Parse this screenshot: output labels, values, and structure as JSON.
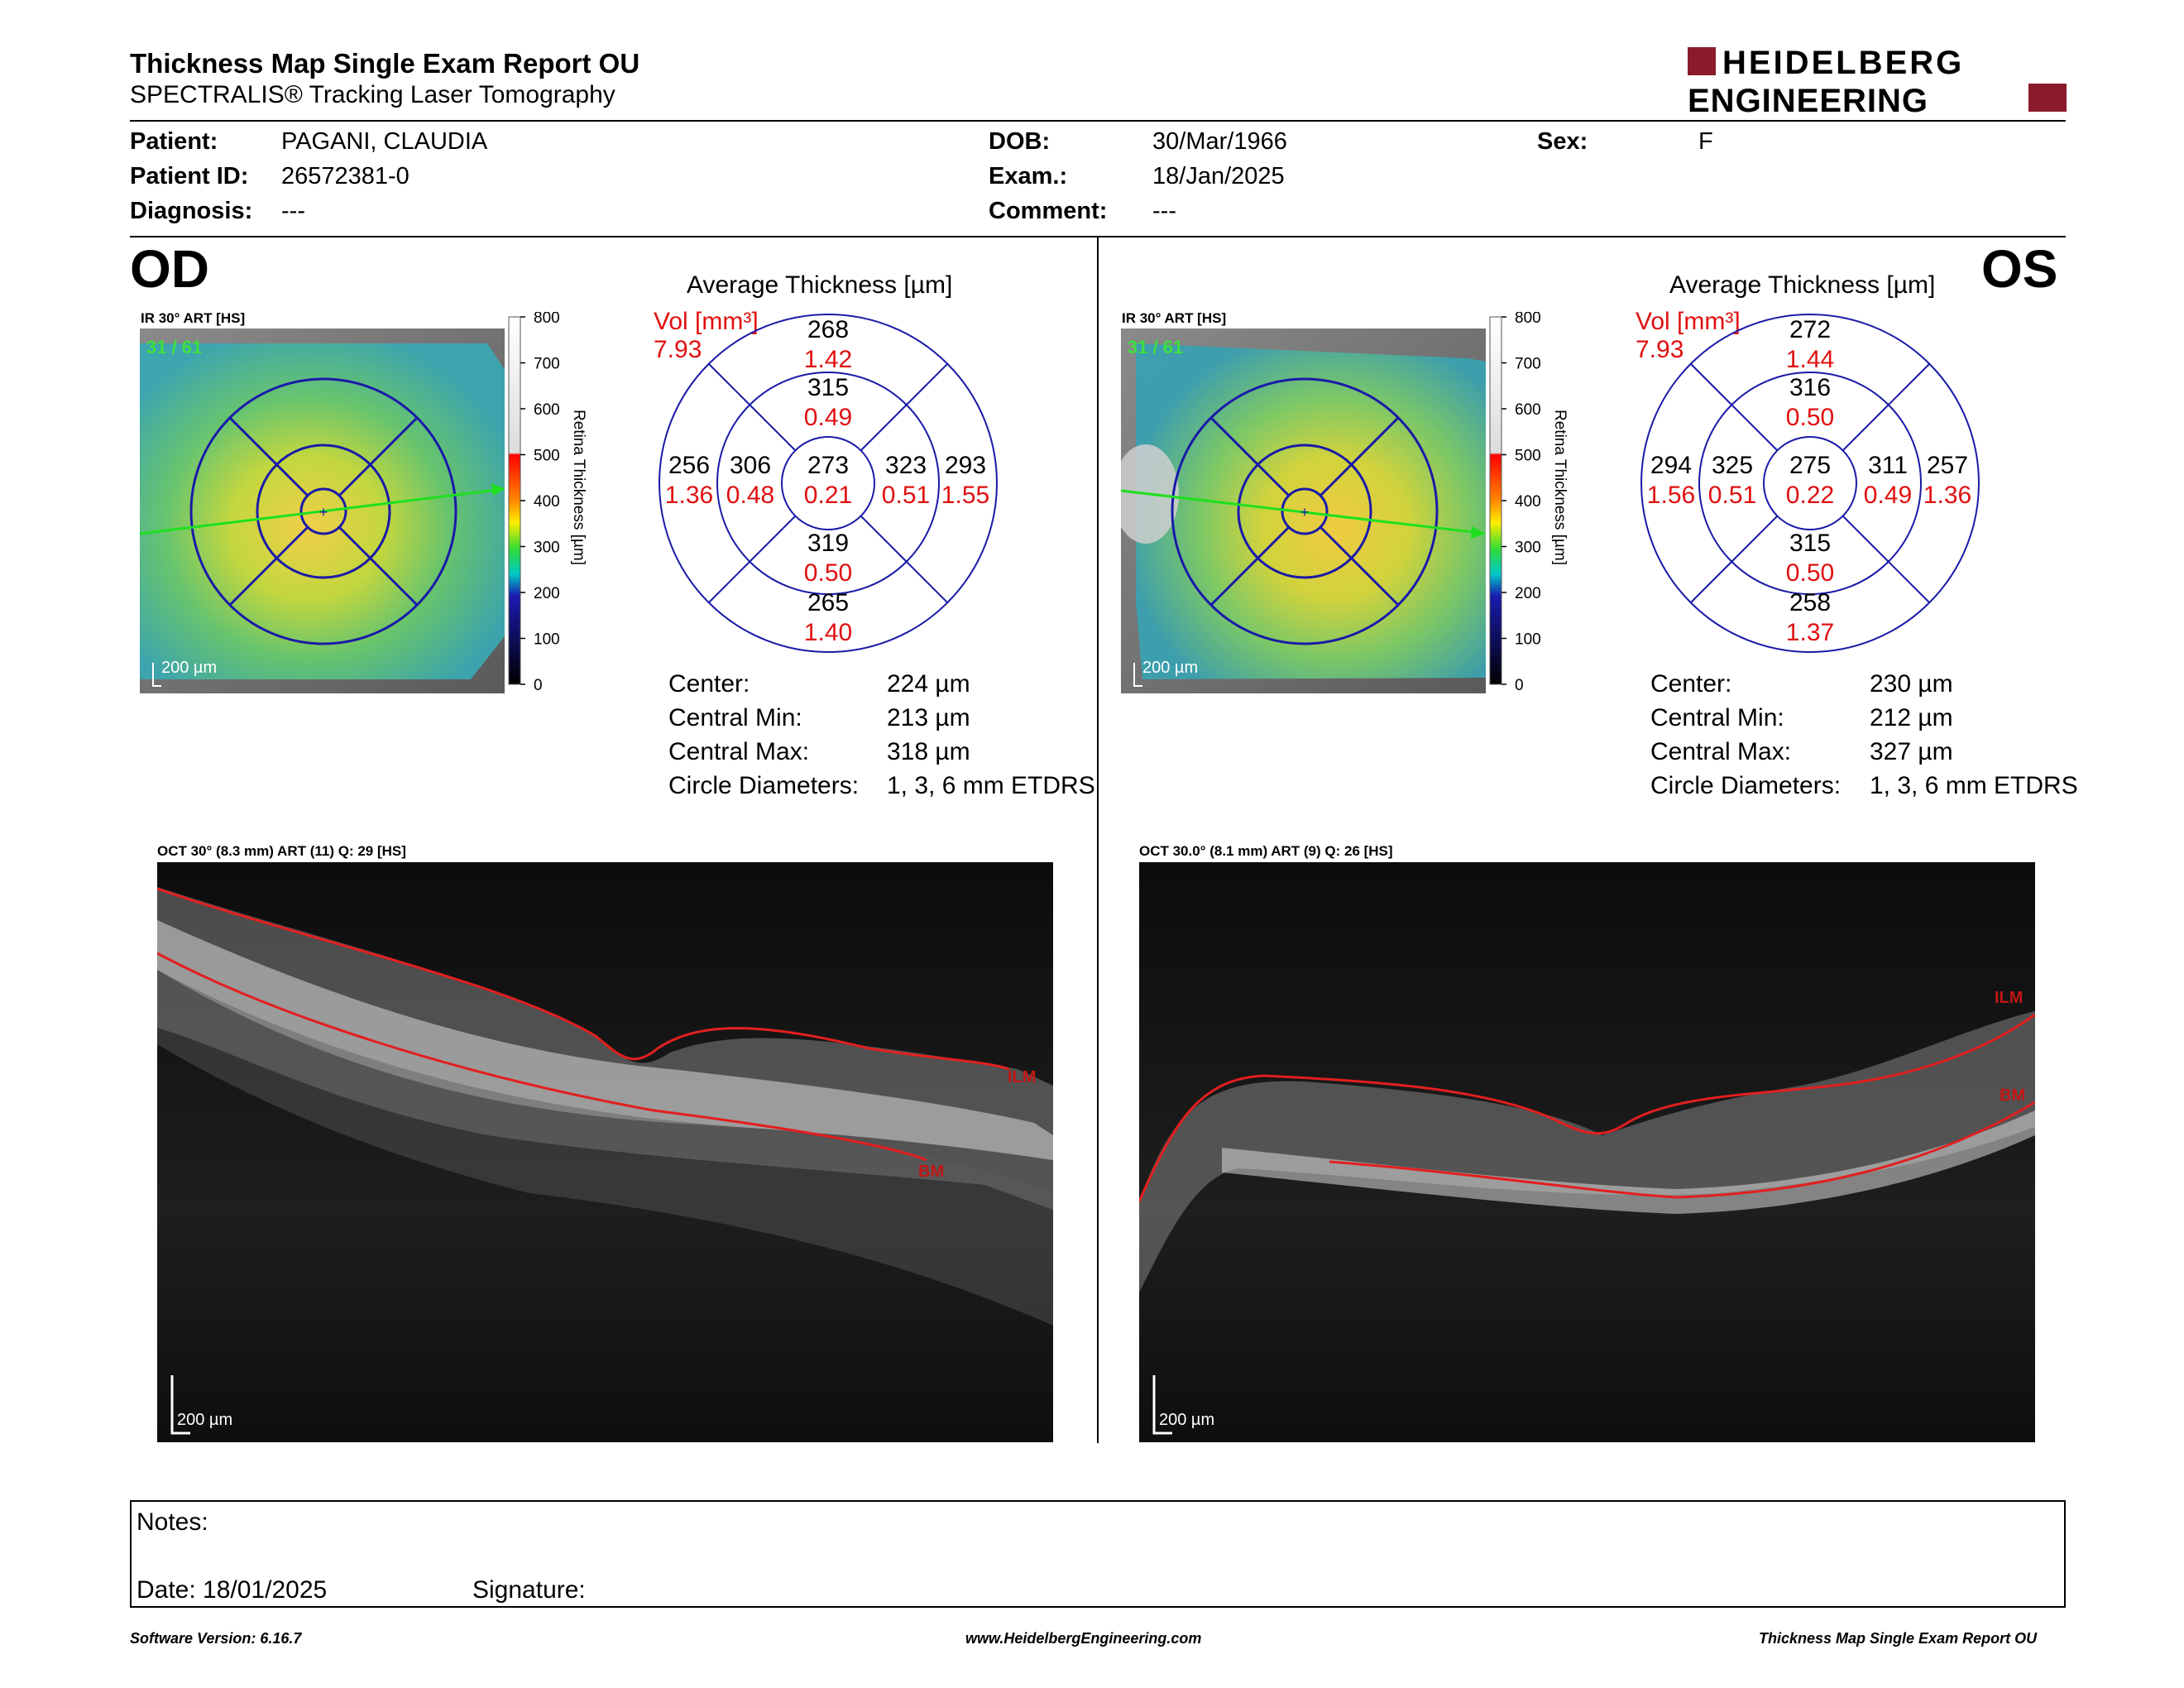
{
  "header": {
    "title": "Thickness Map Single Exam Report OU",
    "subtitle": "SPECTRALIS® Tracking Laser Tomography",
    "brand_line1": "HEIDELBERG",
    "brand_line2": "ENGINEERING",
    "brand_color": "#8b1a2e"
  },
  "patient": {
    "patient_label": "Patient:",
    "patient_value": "PAGANI, CLAUDIA",
    "id_label": "Patient ID:",
    "id_value": "26572381-0",
    "diag_label": "Diagnosis:",
    "diag_value": "---",
    "dob_label": "DOB:",
    "dob_value": "30/Mar/1966",
    "exam_label": "Exam.:",
    "exam_value": "18/Jan/2025",
    "comment_label": "Comment:",
    "comment_value": "---",
    "sex_label": "Sex:",
    "sex_value": "F"
  },
  "colorbar": {
    "ticks": [
      "800",
      "700",
      "600",
      "500",
      "400",
      "300",
      "200",
      "100",
      "0"
    ],
    "title": "Retina  Thickness [µm]"
  },
  "od": {
    "eye": "OD",
    "ir_label": "IR 30° ART [HS]",
    "frame_count": "31 / 61",
    "scale": "200 µm",
    "avg_title": "Average Thickness [µm]",
    "vol_label": "Vol [mm³]",
    "vol_value": "7.93",
    "sectors": {
      "center": {
        "t": "273",
        "v": "0.21"
      },
      "inner_sup": {
        "t": "315",
        "v": "0.49"
      },
      "inner_inf": {
        "t": "319",
        "v": "0.50"
      },
      "inner_left": {
        "t": "306",
        "v": "0.48"
      },
      "inner_right": {
        "t": "323",
        "v": "0.51"
      },
      "outer_sup": {
        "t": "268",
        "v": "1.42"
      },
      "outer_inf": {
        "t": "265",
        "v": "1.40"
      },
      "outer_left": {
        "t": "256",
        "v": "1.36"
      },
      "outer_right": {
        "t": "293",
        "v": "1.55"
      }
    },
    "stats": {
      "center_label": "Center:",
      "center_value": "224 µm",
      "min_label": "Central Min:",
      "min_value": "213 µm",
      "max_label": "Central Max:",
      "max_value": "318 µm",
      "diam_label": "Circle Diameters:",
      "diam_value": "1, 3, 6 mm ETDRS"
    },
    "oct_label": "OCT 30° (8.3 mm) ART (11) Q: 29 [HS]",
    "oct_scale": "200 µm",
    "ilm": "ILM",
    "bm": "BM"
  },
  "os": {
    "eye": "OS",
    "ir_label": "IR 30° ART [HS]",
    "frame_count": "31 / 61",
    "scale": "200 µm",
    "avg_title": "Average Thickness [µm]",
    "vol_label": "Vol [mm³]",
    "vol_value": "7.93",
    "sectors": {
      "center": {
        "t": "275",
        "v": "0.22"
      },
      "inner_sup": {
        "t": "316",
        "v": "0.50"
      },
      "inner_inf": {
        "t": "315",
        "v": "0.50"
      },
      "inner_left": {
        "t": "325",
        "v": "0.51"
      },
      "inner_right": {
        "t": "311",
        "v": "0.49"
      },
      "outer_sup": {
        "t": "272",
        "v": "1.44"
      },
      "outer_inf": {
        "t": "258",
        "v": "1.37"
      },
      "outer_left": {
        "t": "294",
        "v": "1.56"
      },
      "outer_right": {
        "t": "257",
        "v": "1.36"
      }
    },
    "stats": {
      "center_label": "Center:",
      "center_value": "230 µm",
      "min_label": "Central Min:",
      "min_value": "212 µm",
      "max_label": "Central Max:",
      "max_value": "327 µm",
      "diam_label": "Circle Diameters:",
      "diam_value": "1, 3, 6 mm ETDRS"
    },
    "oct_label": "OCT 30.0° (8.1 mm) ART (9) Q: 26 [HS]",
    "oct_scale": "200 µm",
    "ilm": "ILM",
    "bm": "BM"
  },
  "notes": {
    "notes_label": "Notes:",
    "date_label": "Date: 18/01/2025",
    "signature_label": "Signature:"
  },
  "footer": {
    "software": "Software Version: 6.16.7",
    "website": "www.HeidelbergEngineering.com",
    "report": "Thickness Map Single Exam Report OU"
  }
}
